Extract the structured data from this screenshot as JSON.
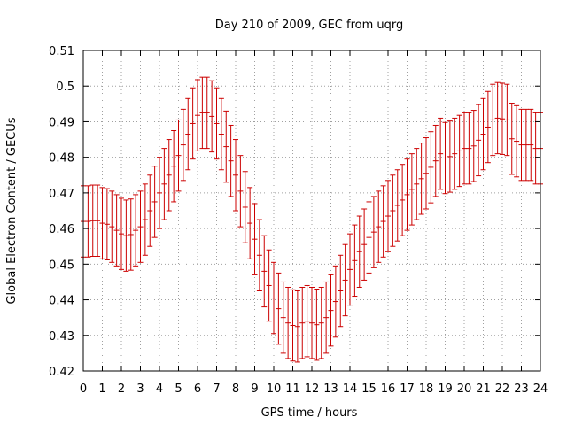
{
  "chart_data": {
    "type": "line",
    "title": "Day 210 of 2009, GEC from uqrg",
    "xlabel": "GPS time / hours",
    "ylabel": "Global Electron Content / GECUs",
    "xlim": [
      0,
      24
    ],
    "ylim": [
      0.42,
      0.51
    ],
    "xticks": [
      "0",
      "1",
      "2",
      "3",
      "4",
      "5",
      "6",
      "7",
      "8",
      "9",
      "10",
      "11",
      "12",
      "13",
      "14",
      "15",
      "16",
      "17",
      "18",
      "19",
      "20",
      "21",
      "22",
      "23",
      "24"
    ],
    "yticks": [
      "0.42",
      "0.43",
      "0.44",
      "0.45",
      "0.46",
      "0.47",
      "0.48",
      "0.49",
      "0.5",
      "0.51"
    ],
    "grid": true,
    "legend": "none",
    "error": 0.01,
    "series_color": "#cc0000",
    "series": [
      {
        "x": [
          0,
          0.25,
          0.5,
          0.75,
          1,
          1.25,
          1.5,
          1.75,
          2,
          2.25,
          2.5,
          2.75,
          3,
          3.25,
          3.5,
          3.75,
          4,
          4.25,
          4.5,
          4.75,
          5,
          5.25,
          5.5,
          5.75,
          6,
          6.25,
          6.5,
          6.75,
          7,
          7.25,
          7.5,
          7.75,
          8,
          8.25,
          8.5,
          8.75,
          9,
          9.25,
          9.5,
          9.75,
          10,
          10.25,
          10.5,
          10.75,
          11,
          11.25,
          11.5,
          11.75,
          12,
          12.25,
          12.5,
          12.75,
          13,
          13.25,
          13.5,
          13.75,
          14,
          14.25,
          14.5,
          14.75,
          15,
          15.25,
          15.5,
          15.75,
          16,
          16.25,
          16.5,
          16.75,
          17,
          17.25,
          17.5,
          17.75,
          18,
          18.25,
          18.5,
          18.75,
          19,
          19.25,
          19.5,
          19.75,
          20,
          20.25,
          20.5,
          20.75,
          21,
          21.25,
          21.5,
          21.75,
          22,
          22.25,
          22.5,
          22.75,
          23,
          23.25,
          23.5,
          23.75,
          24
        ],
        "y": [
          0.462,
          0.462,
          0.4622,
          0.4622,
          0.4615,
          0.4612,
          0.4605,
          0.4595,
          0.4585,
          0.458,
          0.4583,
          0.4595,
          0.4605,
          0.4625,
          0.465,
          0.4675,
          0.47,
          0.4725,
          0.475,
          0.4775,
          0.4805,
          0.4835,
          0.4865,
          0.4895,
          0.4918,
          0.4925,
          0.4925,
          0.4915,
          0.4895,
          0.4865,
          0.483,
          0.479,
          0.475,
          0.4705,
          0.466,
          0.4615,
          0.457,
          0.4525,
          0.448,
          0.444,
          0.4405,
          0.4375,
          0.435,
          0.4335,
          0.4328,
          0.4325,
          0.4335,
          0.434,
          0.4335,
          0.433,
          0.4335,
          0.435,
          0.437,
          0.4395,
          0.4425,
          0.4455,
          0.4485,
          0.451,
          0.4535,
          0.4555,
          0.4575,
          0.459,
          0.4605,
          0.462,
          0.4635,
          0.465,
          0.4665,
          0.468,
          0.4695,
          0.471,
          0.4725,
          0.474,
          0.4755,
          0.4772,
          0.479,
          0.481,
          0.4798,
          0.4802,
          0.481,
          0.4818,
          0.4825,
          0.4825,
          0.4832,
          0.4848,
          0.4865,
          0.4885,
          0.4905,
          0.491,
          0.4908,
          0.4905,
          0.4852,
          0.4845,
          0.4835,
          0.4835,
          0.4835,
          0.4825,
          0.4825
        ]
      }
    ]
  }
}
